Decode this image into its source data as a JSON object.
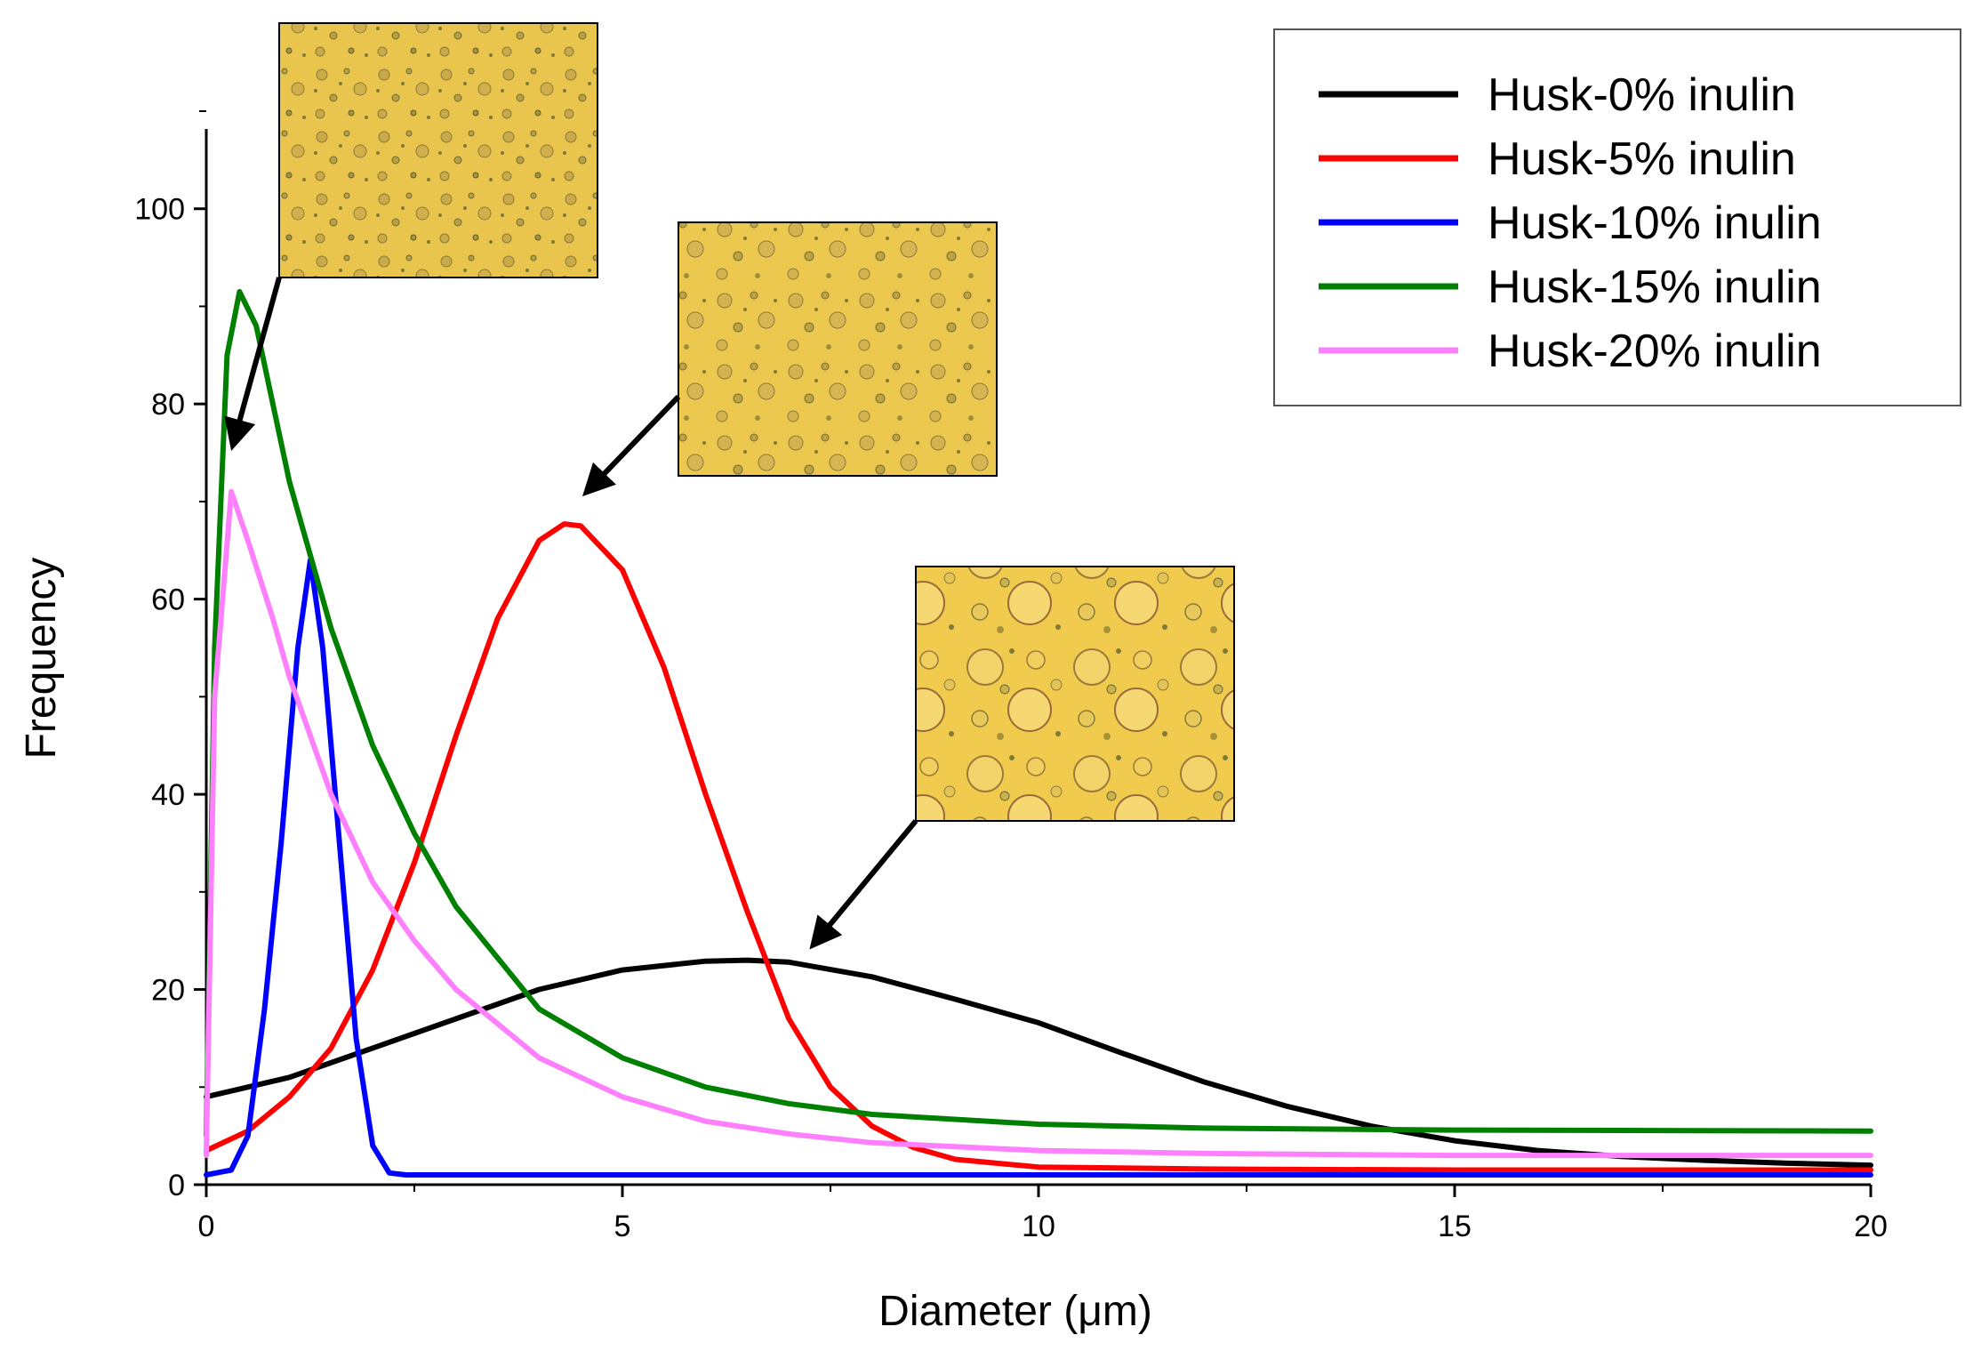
{
  "chart_data": {
    "type": "line",
    "title": "",
    "xlabel": "Diameter (μm)",
    "ylabel": "Frequency",
    "xlim": [
      0,
      20
    ],
    "ylim": [
      0,
      110
    ],
    "xticks": [
      0,
      5,
      10,
      15,
      20
    ],
    "xtick_labels": [
      "0",
      "5",
      "10",
      "15",
      "20"
    ],
    "yticks": [
      0,
      20,
      40,
      60,
      80,
      100
    ],
    "ytick_labels": [
      "0",
      "20",
      "40",
      "60",
      "80",
      "100"
    ],
    "grid": false,
    "legend_position": "top-right",
    "series": [
      {
        "name": "Husk-0% inulin",
        "color": "#000000",
        "x": [
          0,
          1,
          2,
          3,
          4,
          5,
          6,
          6.5,
          7,
          8,
          9,
          10,
          11,
          12,
          13,
          14,
          15,
          16,
          17,
          18,
          19,
          20
        ],
        "y": [
          9,
          11,
          14,
          17,
          20,
          22,
          22.9,
          23,
          22.8,
          21.3,
          19,
          16.6,
          13.5,
          10.5,
          8,
          6,
          4.5,
          3.5,
          2.9,
          2.5,
          2.2,
          2
        ]
      },
      {
        "name": "Husk-5% inulin",
        "color": "#ff0000",
        "x": [
          0,
          0.5,
          1,
          1.5,
          2,
          2.5,
          3,
          3.5,
          4,
          4.3,
          4.5,
          5,
          5.5,
          6,
          6.5,
          7,
          7.5,
          8,
          8.5,
          9,
          10,
          12,
          15,
          20
        ],
        "y": [
          3.5,
          5.5,
          9,
          14,
          22,
          33,
          46,
          58,
          66,
          67.7,
          67.5,
          63,
          53,
          40,
          28,
          17,
          10,
          6,
          3.8,
          2.6,
          1.8,
          1.6,
          1.5,
          1.5
        ]
      },
      {
        "name": "Husk-10% inulin",
        "color": "#0000ff",
        "x": [
          0,
          0.3,
          0.5,
          0.7,
          0.9,
          1.1,
          1.25,
          1.4,
          1.6,
          1.8,
          2.0,
          2.2,
          2.4,
          5,
          10,
          15,
          20
        ],
        "y": [
          1,
          1.5,
          5,
          18,
          35,
          55,
          64,
          55,
          35,
          15,
          4,
          1.2,
          1,
          1,
          1,
          1,
          1
        ]
      },
      {
        "name": "Husk-15% inulin",
        "color": "#008000",
        "x": [
          0,
          0.1,
          0.25,
          0.4,
          0.6,
          0.8,
          1,
          1.5,
          2,
          2.5,
          3,
          4,
          5,
          6,
          7,
          8,
          10,
          12,
          15,
          20
        ],
        "y": [
          5,
          55,
          85,
          91.5,
          88,
          80,
          72,
          57,
          45,
          36,
          28.5,
          18,
          13,
          10,
          8.3,
          7.2,
          6.2,
          5.8,
          5.6,
          5.5
        ]
      },
      {
        "name": "Husk-20% inulin",
        "color": "#ff80ff",
        "x": [
          0,
          0.1,
          0.3,
          0.5,
          0.8,
          1,
          1.5,
          2,
          2.5,
          3,
          4,
          5,
          6,
          7,
          8,
          10,
          12,
          15,
          20
        ],
        "y": [
          3,
          50,
          71,
          66,
          58,
          52,
          40,
          31,
          25,
          20,
          13,
          9,
          6.5,
          5.2,
          4.3,
          3.5,
          3.2,
          3,
          3
        ]
      }
    ],
    "annotations": [
      {
        "label": "micrograph",
        "points_to_series": "Husk-20% inulin",
        "points_to": [
          0.3,
          71
        ]
      },
      {
        "label": "micrograph",
        "points_to_series": "Husk-5% inulin",
        "points_to": [
          4.5,
          67.5
        ]
      },
      {
        "label": "micrograph",
        "points_to_series": "Husk-0% inulin",
        "points_to": [
          7.3,
          23
        ]
      }
    ]
  }
}
